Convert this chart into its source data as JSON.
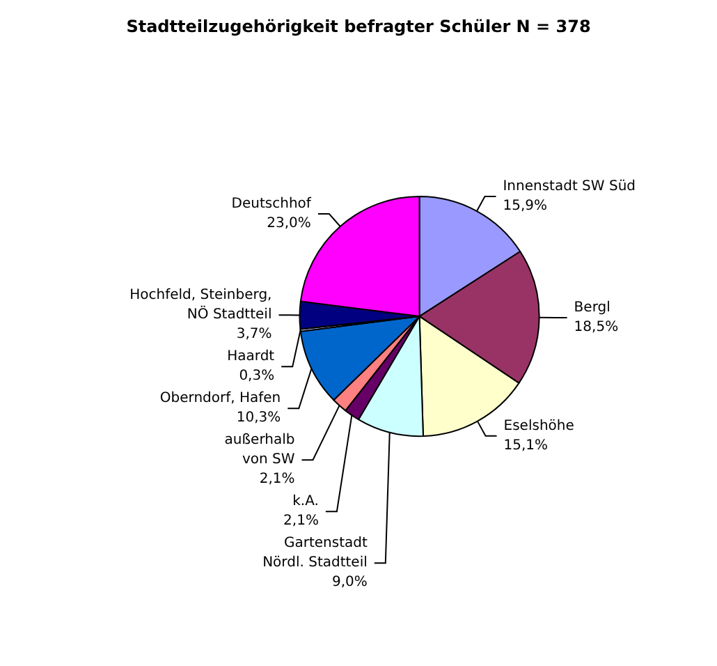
{
  "chart_data": {
    "type": "pie",
    "title": "Stadtteilzugehörigkeit befragter Schüler N = 378",
    "categories": [
      "Innenstadt SW Süd",
      "Bergl",
      "Eselshöhe",
      "Gartenstadt\nNördl. Stadtteil",
      "k.A.",
      "außerhalb\nvon SW",
      "Oberndorf, Hafen",
      "Haardt",
      "Hochfeld, Steinberg,\nNÖ Stadtteil",
      "Deutschhof"
    ],
    "values": [
      15.9,
      18.5,
      15.1,
      9.0,
      2.1,
      2.1,
      10.3,
      0.3,
      3.7,
      23.0
    ],
    "value_labels": [
      "15,9%",
      "18,5%",
      "15,1%",
      "9,0%",
      "2,1%",
      "2,1%",
      "10,3%",
      "0,3%",
      "3,7%",
      "23,0%"
    ],
    "colors": [
      "#9999ff",
      "#993366",
      "#ffffcc",
      "#ccffff",
      "#660066",
      "#ff8080",
      "#0066cc",
      "#ccccff",
      "#000080",
      "#ff00ff"
    ],
    "legend": false
  }
}
